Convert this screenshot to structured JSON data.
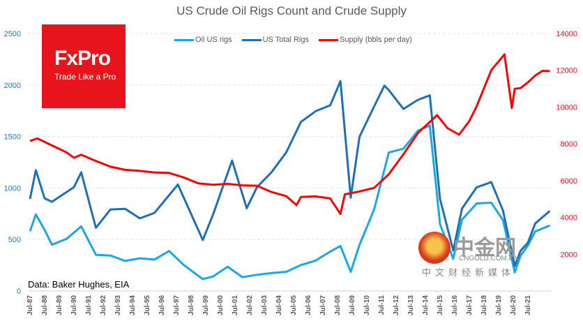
{
  "chart_data": {
    "type": "line",
    "title": "US Crude Oil Rigs Count and Crude Supply",
    "source": "Data: Baker Hughes, EIA",
    "legend_position": "top",
    "grid": true,
    "y_left": {
      "ticks": [
        0,
        500,
        1000,
        1500,
        2000,
        2500
      ],
      "range": [
        0,
        2500
      ],
      "color": "#2e75b6"
    },
    "y_right": {
      "ticks": [
        2000,
        4000,
        6000,
        8000,
        10000,
        12000,
        14000
      ],
      "range": [
        0,
        14000
      ],
      "color": "#e8141b"
    },
    "x_ticks": [
      "Jul-87",
      "Jul-88",
      "Jul-89",
      "Jul-90",
      "Jul-91",
      "Jul-92",
      "Jul-93",
      "Jul-94",
      "Jul-95",
      "Jul-96",
      "Jul-97",
      "Jul-98",
      "Jul-99",
      "Jul-00",
      "Jul-01",
      "Jul-02",
      "Jul-03",
      "Jul-04",
      "Jul-05",
      "Jul-06",
      "Jul-07",
      "Jul-08",
      "Jul-09",
      "Jul-10",
      "Jul-11",
      "Jul-12",
      "Jul-13",
      "Jul-14",
      "Jul-15",
      "Jul-16",
      "Jul-17",
      "Jul-18",
      "Jul-19",
      "Jul-20",
      "Jul-21"
    ],
    "series": [
      {
        "name": "Oil US rigs",
        "axis": "left",
        "color": "#1aa7e8",
        "points": [
          [
            1987.5,
            580
          ],
          [
            1987.9,
            750
          ],
          [
            1988.5,
            600
          ],
          [
            1989,
            450
          ],
          [
            1990,
            500
          ],
          [
            1991,
            620
          ],
          [
            1992,
            350
          ],
          [
            1993,
            350
          ],
          [
            1994,
            300
          ],
          [
            1995,
            320
          ],
          [
            1996,
            300
          ],
          [
            1997,
            380
          ],
          [
            1998,
            250
          ],
          [
            1999.3,
            120
          ],
          [
            2000,
            150
          ],
          [
            2001,
            240
          ],
          [
            2002,
            130
          ],
          [
            2003,
            150
          ],
          [
            2004,
            170
          ],
          [
            2005,
            190
          ],
          [
            2006,
            260
          ],
          [
            2007,
            300
          ],
          [
            2008,
            380
          ],
          [
            2008.7,
            430
          ],
          [
            2009.4,
            180
          ],
          [
            2010,
            450
          ],
          [
            2011,
            800
          ],
          [
            2012,
            1350
          ],
          [
            2013,
            1380
          ],
          [
            2014,
            1550
          ],
          [
            2014.8,
            1600
          ],
          [
            2015.5,
            650
          ],
          [
            2016.4,
            320
          ],
          [
            2017,
            700
          ],
          [
            2018,
            850
          ],
          [
            2019,
            850
          ],
          [
            2019.8,
            680
          ],
          [
            2020.6,
            180
          ],
          [
            2021,
            350
          ],
          [
            2021.5,
            450
          ],
          [
            2022,
            580
          ],
          [
            2023,
            630
          ]
        ]
      },
      {
        "name": "US Total Rigs",
        "axis": "left",
        "color": "#1f6fb5",
        "points": [
          [
            1987.5,
            900
          ],
          [
            1987.9,
            1180
          ],
          [
            1988.5,
            900
          ],
          [
            1989,
            860
          ],
          [
            1990.5,
            1000
          ],
          [
            1991,
            1150
          ],
          [
            1992,
            620
          ],
          [
            1993,
            800
          ],
          [
            1994,
            800
          ],
          [
            1995,
            700
          ],
          [
            1996,
            750
          ],
          [
            1997.6,
            1030
          ],
          [
            1999.3,
            500
          ],
          [
            2000,
            750
          ],
          [
            2001.3,
            1270
          ],
          [
            2002.3,
            800
          ],
          [
            2003,
            1000
          ],
          [
            2004,
            1150
          ],
          [
            2005,
            1350
          ],
          [
            2006,
            1650
          ],
          [
            2007,
            1750
          ],
          [
            2008,
            1800
          ],
          [
            2008.7,
            2030
          ],
          [
            2009.4,
            900
          ],
          [
            2010,
            1500
          ],
          [
            2011,
            1800
          ],
          [
            2011.7,
            2000
          ],
          [
            2012,
            1950
          ],
          [
            2013,
            1760
          ],
          [
            2014,
            1850
          ],
          [
            2014.8,
            1900
          ],
          [
            2015.5,
            900
          ],
          [
            2016.4,
            400
          ],
          [
            2017,
            800
          ],
          [
            2018,
            1000
          ],
          [
            2019,
            1050
          ],
          [
            2019.8,
            780
          ],
          [
            2020.6,
            250
          ],
          [
            2021,
            400
          ],
          [
            2021.5,
            470
          ],
          [
            2022,
            650
          ],
          [
            2023,
            770
          ]
        ]
      },
      {
        "name": "Supply (bbls per day)",
        "axis": "right",
        "color": "#ff0000",
        "points": [
          [
            1987.5,
            8200
          ],
          [
            1988,
            8300
          ],
          [
            1990,
            7500
          ],
          [
            1990.5,
            7200
          ],
          [
            1991,
            7400
          ],
          [
            1992,
            7100
          ],
          [
            1993,
            6800
          ],
          [
            1994,
            6600
          ],
          [
            1995,
            6500
          ],
          [
            1996,
            6400
          ],
          [
            1997,
            6400
          ],
          [
            1998,
            6200
          ],
          [
            1999,
            5900
          ],
          [
            2000,
            5800
          ],
          [
            2001,
            5800
          ],
          [
            2002,
            5700
          ],
          [
            2003,
            5700
          ],
          [
            2004,
            5400
          ],
          [
            2005,
            5200
          ],
          [
            2005.7,
            4700
          ],
          [
            2006,
            5100
          ],
          [
            2007,
            5100
          ],
          [
            2008,
            5000
          ],
          [
            2008.7,
            4200
          ],
          [
            2009,
            5300
          ],
          [
            2010,
            5450
          ],
          [
            2011,
            5600
          ],
          [
            2012,
            6300
          ],
          [
            2013,
            7400
          ],
          [
            2014,
            8600
          ],
          [
            2015.3,
            9600
          ],
          [
            2016,
            8900
          ],
          [
            2016.8,
            8500
          ],
          [
            2017.5,
            9200
          ],
          [
            2018,
            10000
          ],
          [
            2019,
            12000
          ],
          [
            2019.9,
            12900
          ],
          [
            2020.4,
            10000
          ],
          [
            2020.6,
            11000
          ],
          [
            2021,
            11000
          ],
          [
            2021.5,
            11300
          ],
          [
            2022,
            11700
          ],
          [
            2022.5,
            12000
          ],
          [
            2023,
            12000
          ]
        ]
      }
    ]
  },
  "logo": {
    "brand": "FxPro",
    "tagline": "Trade Like a Pro"
  },
  "watermark": {
    "name": "中金网",
    "domain": "CNGOLD.COM.CN",
    "sub": "中文财经新媒体"
  }
}
